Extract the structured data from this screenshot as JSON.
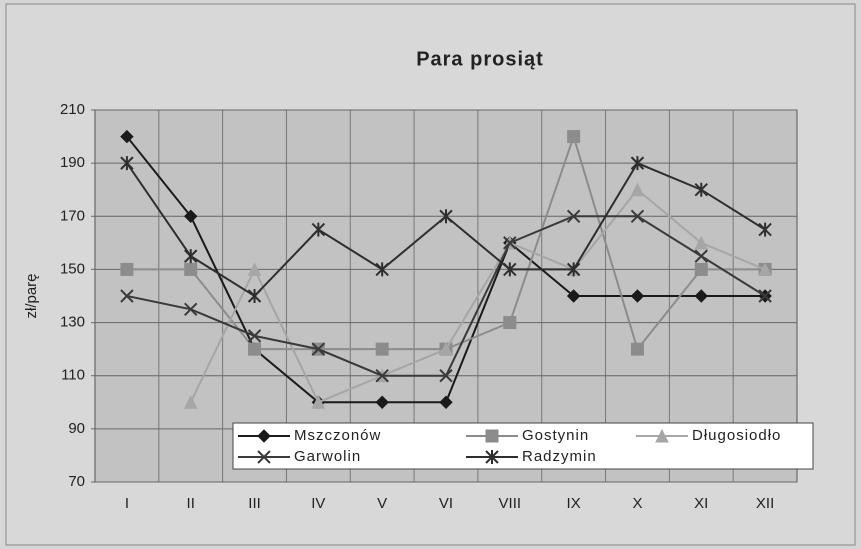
{
  "chart_data": {
    "type": "line",
    "title": "Para prosiąt",
    "y_label": "zł/parę",
    "categories": [
      "I",
      "II",
      "III",
      "IV",
      "V",
      "VI",
      "VIII",
      "IX",
      "X",
      "XI",
      "XII"
    ],
    "series": [
      {
        "name": "Mszczonów",
        "color": "#1a1a1a",
        "marker": "diamond",
        "values": [
          200,
          170,
          120,
          100,
          100,
          100,
          160,
          140,
          140,
          140,
          140
        ]
      },
      {
        "name": "Gostynin",
        "color": "#8c8c8c",
        "marker": "square",
        "values": [
          150,
          150,
          120,
          120,
          120,
          120,
          130,
          200,
          120,
          150,
          150
        ]
      },
      {
        "name": "Długosiodło",
        "color": "#a6a6a6",
        "marker": "triangle",
        "values": [
          null,
          100,
          150,
          100,
          110,
          120,
          160,
          150,
          180,
          160,
          150
        ]
      },
      {
        "name": "Garwolin",
        "color": "#3a3a3a",
        "marker": "x",
        "values": [
          140,
          135,
          125,
          120,
          110,
          110,
          160,
          170,
          170,
          155,
          140
        ]
      },
      {
        "name": "Radzymin",
        "color": "#2e2e2e",
        "marker": "star",
        "values": [
          190,
          155,
          140,
          165,
          150,
          170,
          150,
          150,
          190,
          180,
          165
        ]
      }
    ],
    "ylim": [
      70,
      210
    ],
    "yticks": [
      70,
      90,
      110,
      130,
      150,
      170,
      190,
      210
    ],
    "grid": true
  }
}
